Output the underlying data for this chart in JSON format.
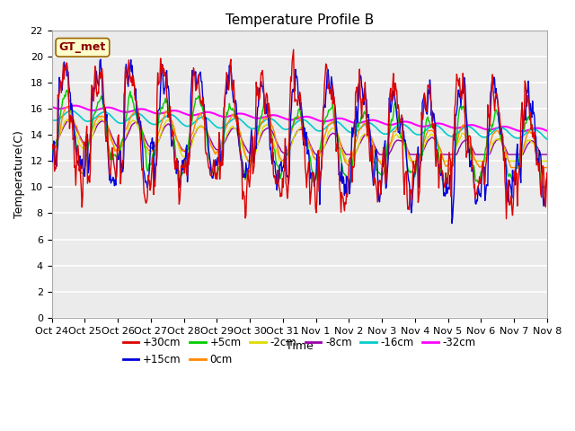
{
  "title": "Temperature Profile B",
  "xlabel": "Time",
  "ylabel": "Temperature(C)",
  "annotation": "GT_met",
  "ylim": [
    0,
    22
  ],
  "yticks": [
    0,
    2,
    4,
    6,
    8,
    10,
    12,
    14,
    16,
    18,
    20,
    22
  ],
  "xtick_labels": [
    "Oct 24",
    "Oct 25",
    "Oct 26",
    "Oct 27",
    "Oct 28",
    "Oct 29",
    "Oct 30",
    "Oct 31",
    "Nov 1",
    "Nov 2",
    "Nov 3",
    "Nov 4",
    "Nov 5",
    "Nov 6",
    "Nov 7",
    "Nov 8"
  ],
  "series_labels": [
    "+30cm",
    "+15cm",
    "+5cm",
    "0cm",
    "-2cm",
    "-8cm",
    "-16cm",
    "-32cm"
  ],
  "series_colors": [
    "#dd0000",
    "#0000dd",
    "#00cc00",
    "#ff8800",
    "#dddd00",
    "#9900aa",
    "#00cccc",
    "#ff00ff"
  ],
  "series_lw": [
    1.0,
    1.0,
    1.0,
    1.0,
    1.0,
    1.0,
    1.2,
    1.5
  ],
  "plot_bg_color": "#ebebeb",
  "title_fontsize": 11,
  "label_fontsize": 9,
  "tick_fontsize": 8
}
